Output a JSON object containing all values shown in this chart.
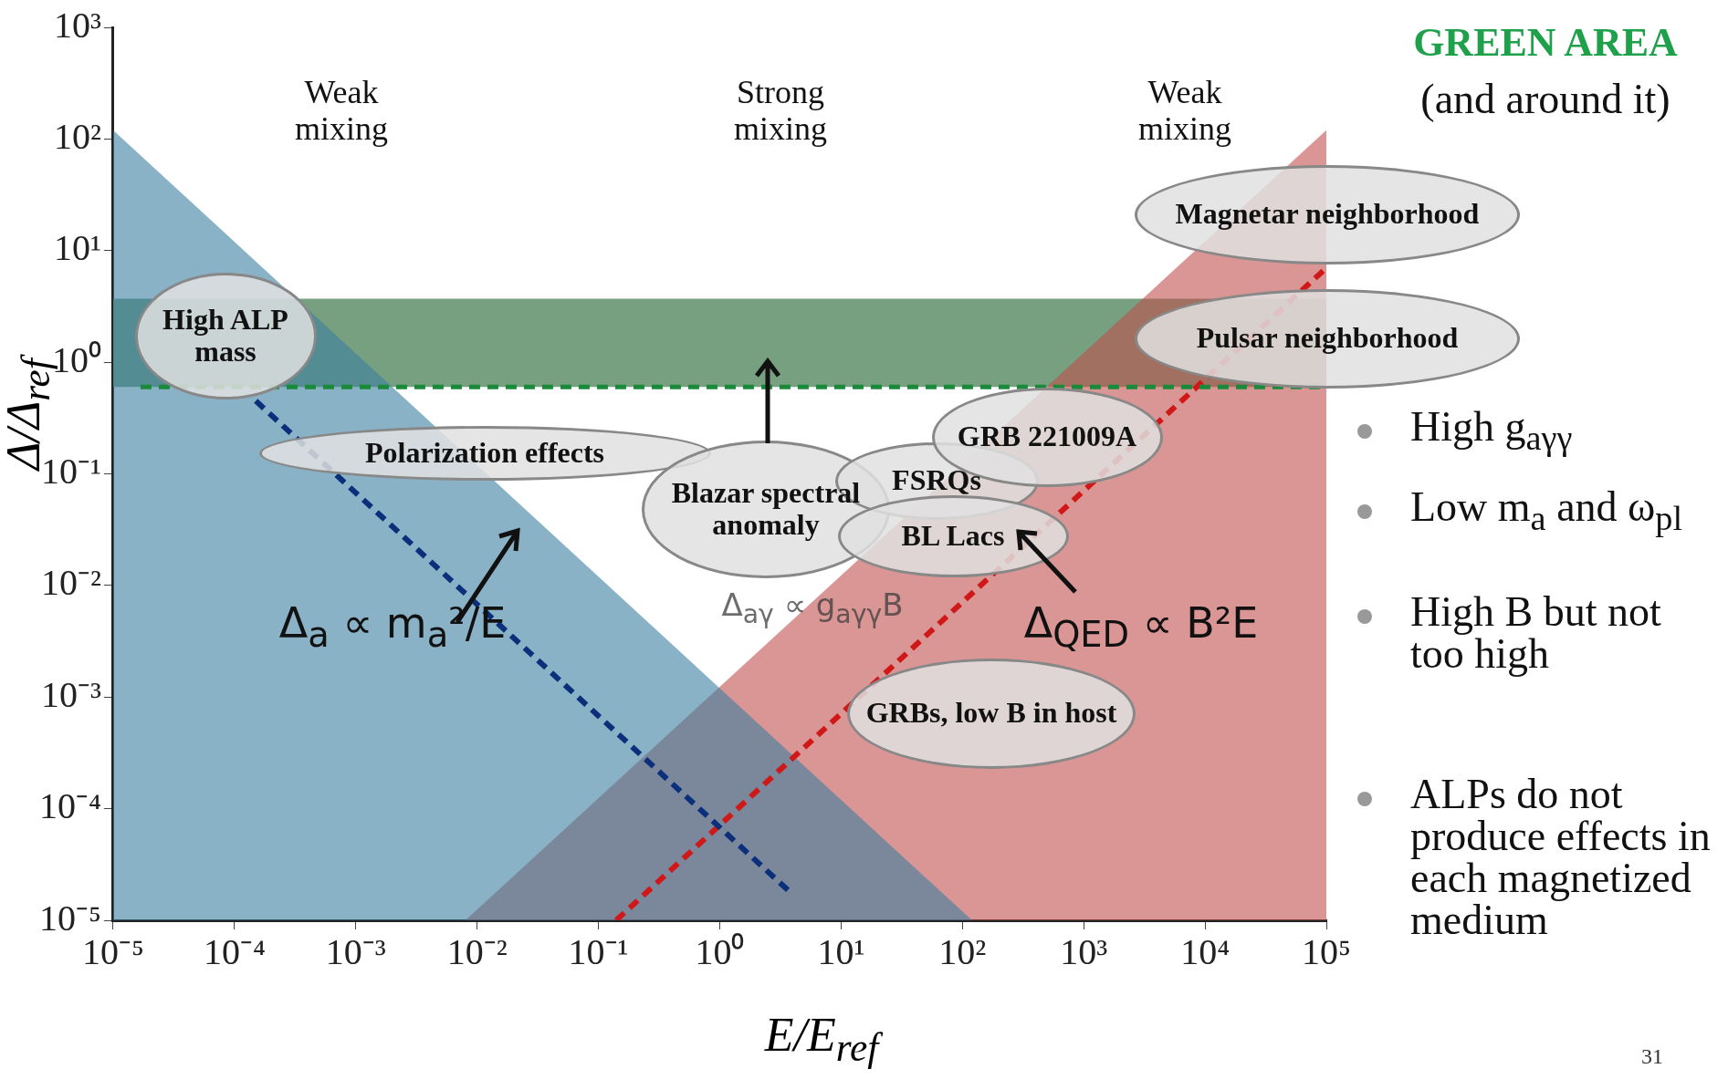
{
  "chart_data": {
    "type": "line",
    "xlabel": "E/E$_{ref}$",
    "ylabel": "Δ/Δ$_{ref}$",
    "log": "xy",
    "xlim": [
      1e-05,
      100000.0
    ],
    "ylim": [
      1e-05,
      1000
    ],
    "xticks": [
      {
        "value": 1e-05,
        "label": "10⁻⁵"
      },
      {
        "value": 0.0001,
        "label": "10⁻⁴"
      },
      {
        "value": 0.001,
        "label": "10⁻³"
      },
      {
        "value": 0.01,
        "label": "10⁻²"
      },
      {
        "value": 0.1,
        "label": "10⁻¹"
      },
      {
        "value": 1,
        "label": "10⁰"
      },
      {
        "value": 10,
        "label": "10¹"
      },
      {
        "value": 100,
        "label": "10²"
      },
      {
        "value": 1000,
        "label": "10³"
      },
      {
        "value": 10000,
        "label": "10⁴"
      },
      {
        "value": 100000,
        "label": "10⁵"
      }
    ],
    "yticks": [
      {
        "value": 1e-05,
        "label": "10⁻⁵"
      },
      {
        "value": 0.0001,
        "label": "10⁻⁴"
      },
      {
        "value": 0.001,
        "label": "10⁻³"
      },
      {
        "value": 0.01,
        "label": "10⁻²"
      },
      {
        "value": 0.1,
        "label": "10⁻¹"
      },
      {
        "value": 1,
        "label": "10⁰"
      },
      {
        "value": 10,
        "label": "10¹"
      },
      {
        "value": 100,
        "label": "10²"
      },
      {
        "value": 1000,
        "label": "10³"
      }
    ],
    "grid": false,
    "legend": false,
    "marker": "none",
    "series": [
      {
        "type": "area",
        "color": "#3c7fa0",
        "x": [
          1e-05,
          120
        ],
        "values": [
          120,
          1e-05
        ]
      },
      {
        "type": "area",
        "color": "#c0504d",
        "x": [
          0.008,
          100000.0
        ],
        "values": [
          1e-05,
          120
        ]
      },
      {
        "type": "line",
        "color": "#0b2f7a",
        "line_style": "dashed",
        "x": [
          0.00015,
          4
        ],
        "values": [
          0.45,
          1.7e-05
        ]
      },
      {
        "type": "line",
        "color": "#d01818",
        "line_style": "dashed",
        "x": [
          0.14,
          100000.0
        ],
        "values": [
          1e-05,
          7
        ]
      }
    ],
    "bands": [
      {
        "axis": "y",
        "from": 0.6,
        "to": 3.7,
        "color": "#5e8f6a"
      }
    ],
    "ref_lines": [
      {
        "axis": "y",
        "value": 0.6,
        "color": "#1a8a3a",
        "line_style": "dashed"
      }
    ],
    "annotations": [
      "Weak mixing",
      "Strong mixing",
      "Weak mixing",
      "High ALP mass",
      "Polarization effects",
      "Blazar spectral anomaly",
      "FSRQs",
      "BL Lacs",
      "GRB 221009A",
      "Magnetar neighborhood",
      "Pulsar neighborhood",
      "GRBs, low B in host",
      "Δ$_{a}$ ∝ m$_{a}$²/E",
      "Δ$_{QED}$ ∝ B²E",
      "Δ$_{aγ}$ ∝ g$_{aγγ}$B",
      "GREEN AREA",
      "(and around it)",
      "High g$_{aγγ}$",
      "Low m$_{a}$ and ω$_{pl}$",
      "High B but not too high",
      "ALPs do not produce effects in each magnetized medium",
      "31"
    ]
  }
}
